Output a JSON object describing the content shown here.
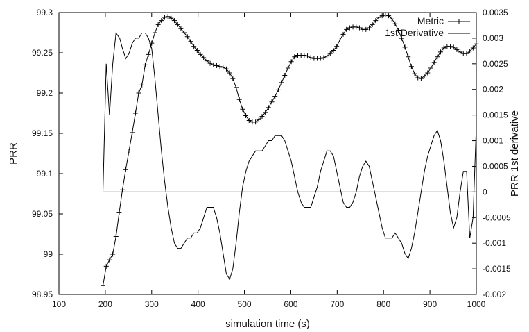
{
  "chart_data": {
    "type": "line",
    "title": "",
    "xlabel": "simulation time (s)",
    "ylabel": "PRR",
    "y2label": "PRR 1st derivative",
    "xlim": [
      100,
      1000
    ],
    "ylim": [
      98.95,
      99.3
    ],
    "y2lim": [
      -0.002,
      0.0035
    ],
    "xticks": [
      "100",
      "200",
      "300",
      "400",
      "500",
      "600",
      "700",
      "800",
      "900",
      "1000"
    ],
    "yticks": [
      "98.95",
      "99",
      "99.05",
      "99.1",
      "99.15",
      "99.2",
      "99.25",
      "99.3"
    ],
    "y2ticks": [
      "-0.002",
      "-0.0015",
      "-0.001",
      "-0.0005",
      "0",
      "0.0005",
      "0.001",
      "0.0015",
      "0.002",
      "0.0025",
      "0.003",
      "0.0035"
    ],
    "grid": false,
    "legend_position": "top-right",
    "series": [
      {
        "name": "Metric",
        "axis": "left",
        "marker": "plus",
        "x": [
          195,
          202,
          209,
          216,
          223,
          230,
          237,
          244,
          251,
          258,
          265,
          272,
          279,
          286,
          293,
          300,
          307,
          314,
          321,
          328,
          335,
          342,
          349,
          356,
          363,
          370,
          377,
          384,
          391,
          398,
          405,
          412,
          419,
          426,
          433,
          440,
          447,
          454,
          461,
          468,
          475,
          482,
          489,
          496,
          503,
          510,
          517,
          524,
          531,
          538,
          545,
          552,
          559,
          566,
          573,
          580,
          587,
          594,
          601,
          608,
          615,
          622,
          629,
          636,
          643,
          650,
          657,
          664,
          671,
          678,
          685,
          692,
          699,
          706,
          713,
          720,
          727,
          734,
          741,
          748,
          755,
          762,
          769,
          776,
          783,
          790,
          797,
          804,
          811,
          818,
          825,
          832,
          839,
          846,
          853,
          860,
          867,
          874,
          881,
          888,
          895,
          902,
          909,
          916,
          923,
          930,
          937,
          944,
          951,
          958,
          965,
          972,
          979,
          986,
          993,
          1000
        ],
        "values": [
          98.961,
          98.985,
          98.993,
          99.0,
          99.022,
          99.052,
          99.08,
          99.105,
          99.128,
          99.151,
          99.175,
          99.2,
          99.21,
          99.235,
          99.248,
          99.262,
          99.275,
          99.285,
          99.29,
          99.294,
          99.295,
          99.293,
          99.29,
          99.285,
          99.28,
          99.275,
          99.27,
          99.264,
          99.258,
          99.253,
          99.248,
          99.244,
          99.24,
          99.237,
          99.235,
          99.234,
          99.233,
          99.232,
          99.23,
          99.225,
          99.218,
          99.207,
          99.192,
          99.18,
          99.172,
          99.166,
          99.164,
          99.164,
          99.167,
          99.171,
          99.176,
          99.182,
          99.189,
          99.196,
          99.204,
          99.213,
          99.222,
          99.231,
          99.239,
          99.245,
          99.247,
          99.247,
          99.247,
          99.246,
          99.244,
          99.243,
          99.243,
          99.243,
          99.244,
          99.246,
          99.249,
          99.253,
          99.258,
          99.266,
          99.273,
          99.279,
          99.281,
          99.282,
          99.282,
          99.281,
          99.279,
          99.279,
          99.281,
          99.285,
          99.29,
          99.294,
          99.296,
          99.297,
          99.296,
          99.292,
          99.286,
          99.278,
          99.268,
          99.257,
          99.245,
          99.233,
          99.224,
          99.219,
          99.218,
          99.221,
          99.225,
          99.231,
          99.238,
          99.245,
          99.251,
          99.256,
          99.258,
          99.258,
          99.257,
          99.254,
          99.251,
          99.249,
          99.249,
          99.252,
          99.256,
          99.261
        ]
      },
      {
        "name": "1st Derivative",
        "axis": "right",
        "marker": "none",
        "x": [
          195,
          202,
          209,
          216,
          223,
          231,
          237,
          244,
          251,
          258,
          265,
          272,
          279,
          286,
          293,
          300,
          307,
          314,
          321,
          328,
          335,
          342,
          349,
          356,
          363,
          370,
          377,
          384,
          391,
          398,
          405,
          412,
          419,
          426,
          433,
          440,
          447,
          454,
          461,
          468,
          475,
          482,
          489,
          496,
          503,
          510,
          517,
          524,
          531,
          538,
          545,
          552,
          559,
          566,
          573,
          580,
          587,
          594,
          601,
          608,
          615,
          622,
          629,
          636,
          643,
          650,
          657,
          664,
          671,
          678,
          685,
          692,
          699,
          706,
          713,
          720,
          727,
          734,
          741,
          748,
          755,
          762,
          769,
          776,
          783,
          790,
          797,
          804,
          811,
          818,
          825,
          832,
          839,
          846,
          853,
          860,
          867,
          874,
          881,
          888,
          895,
          902,
          909,
          916,
          923,
          930,
          937,
          944,
          951,
          958,
          965,
          972,
          979,
          986,
          993,
          1000
        ],
        "values": [
          0.0,
          0.0025,
          0.0015,
          0.0025,
          0.0031,
          0.003,
          0.0028,
          0.0026,
          0.0027,
          0.0029,
          0.003,
          0.003,
          0.0031,
          0.0031,
          0.003,
          0.0028,
          0.0022,
          0.0015,
          0.0008,
          0.0002,
          -0.0003,
          -0.0007,
          -0.001,
          -0.0011,
          -0.0011,
          -0.001,
          -0.0009,
          -0.0009,
          -0.0008,
          -0.0008,
          -0.0007,
          -0.0005,
          -0.0003,
          -0.0003,
          -0.0003,
          -0.0005,
          -0.0008,
          -0.0012,
          -0.0016,
          -0.0017,
          -0.0015,
          -0.001,
          -0.0004,
          0.0001,
          0.0004,
          0.0006,
          0.0007,
          0.0008,
          0.0008,
          0.0008,
          0.0009,
          0.001,
          0.001,
          0.0011,
          0.0011,
          0.0011,
          0.001,
          0.0008,
          0.0006,
          0.0003,
          0.0,
          -0.0002,
          -0.0003,
          -0.0003,
          -0.0003,
          -0.0001,
          0.0001,
          0.0004,
          0.0006,
          0.0008,
          0.0008,
          0.0007,
          0.0004,
          0.0001,
          -0.0002,
          -0.0003,
          -0.0003,
          -0.0002,
          0.0,
          0.0003,
          0.0005,
          0.0006,
          0.0005,
          0.0002,
          -0.0001,
          -0.0004,
          -0.0007,
          -0.0009,
          -0.0009,
          -0.0009,
          -0.0008,
          -0.0009,
          -0.001,
          -0.0012,
          -0.0013,
          -0.0011,
          -0.0008,
          -0.0004,
          0.0,
          0.0004,
          0.0007,
          0.0009,
          0.0011,
          0.0012,
          0.001,
          0.0006,
          0.0001,
          -0.0004,
          -0.0007,
          -0.0005,
          0.0,
          0.0004,
          0.0004,
          -0.0009,
          -0.0005,
          0.0013
        ]
      }
    ]
  }
}
